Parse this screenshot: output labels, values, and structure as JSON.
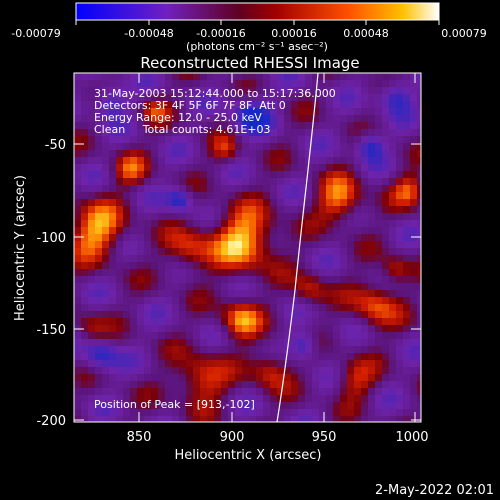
{
  "colorbar": {
    "tick_labels": [
      "-0.00079",
      "-0.00048",
      "-0.00016",
      "0.00016",
      "0.00048",
      "0.00079"
    ],
    "units_label": "(photons cm⁻² s⁻¹ asec⁻²)"
  },
  "plot": {
    "title": "Reconstructed RHESSI Image",
    "info_lines": [
      "31-May-2003 15:12:44.000 to 15:17:36.000",
      "Detectors: 3F 4F 5F 6F 7F 8F, Att 0",
      "Energy Range: 12.0 - 25.0 keV",
      "Clean     Total counts: 4.61E+03"
    ],
    "peak_label": "Position of Peak = [913,-102]",
    "xlabel": "Heliocentric X (arcsec)",
    "ylabel": "Heliocentric Y (arcsec)",
    "x_ticks": [
      "850",
      "900",
      "950",
      "1000"
    ],
    "y_ticks": [
      "-50",
      "-100",
      "-150",
      "-200"
    ]
  },
  "footer": {
    "timestamp": "2-May-2022 02:01"
  },
  "chart_data": {
    "type": "heatmap",
    "title": "Reconstructed RHESSI Image",
    "xlabel": "Heliocentric X (arcsec)",
    "ylabel": "Heliocentric Y (arcsec)",
    "xlim": [
      815,
      1005
    ],
    "ylim": [
      -203,
      -20
    ],
    "x_ticks": [
      850,
      900,
      950,
      1000
    ],
    "y_ticks": [
      -50,
      -100,
      -150,
      -200
    ],
    "colorbar_range": [
      -0.00079,
      0.00079
    ],
    "colorbar_ticks": [
      -0.00079,
      -0.00048,
      -0.00016,
      0.00016,
      0.00048,
      0.00079
    ],
    "peak_position": [
      913,
      -102
    ],
    "colormap": [
      "#0000ff",
      "#6a1fb0",
      "#7a0000",
      "#ff3000",
      "#ffb000",
      "#ffffff"
    ]
  }
}
